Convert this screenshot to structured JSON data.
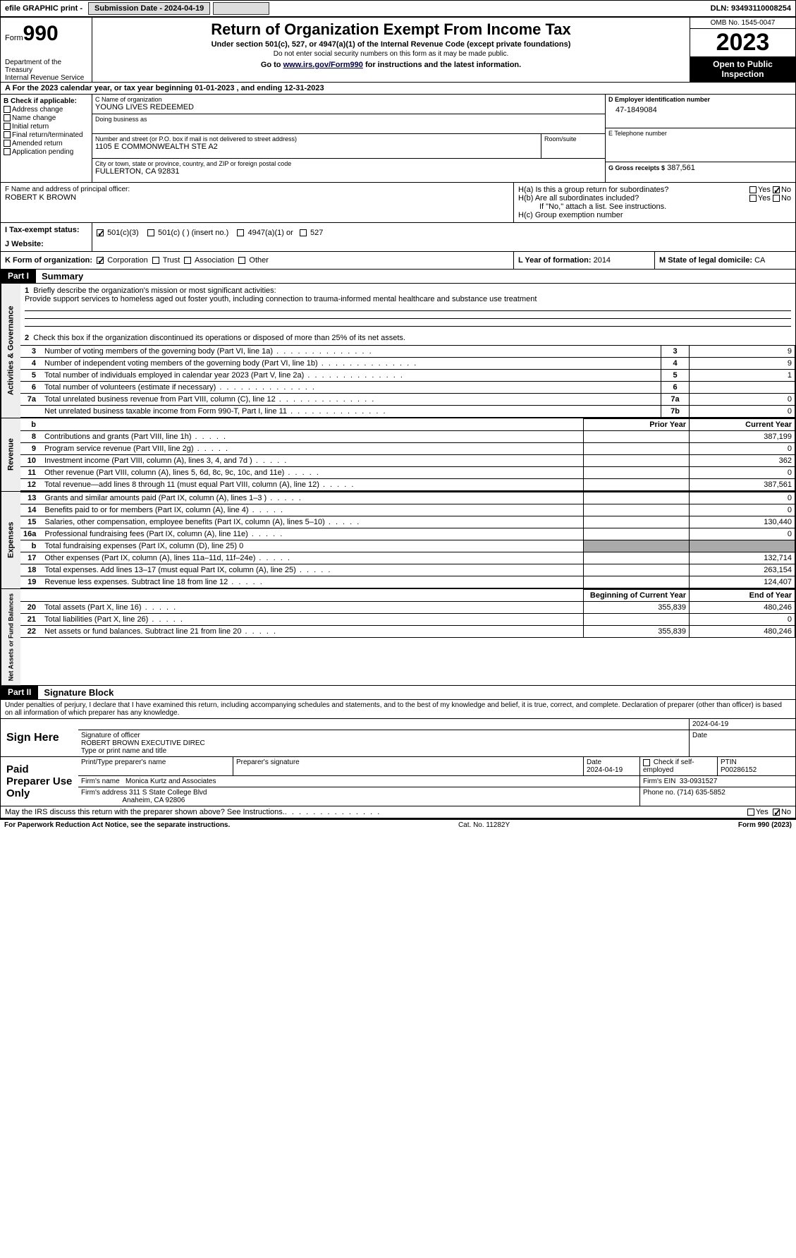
{
  "topbar": {
    "efile": "efile GRAPHIC print -",
    "submission_label": "Submission Date - 2024-04-19",
    "dln_label": "DLN: 93493110008254"
  },
  "header": {
    "form_prefix": "Form",
    "form_number": "990",
    "title": "Return of Organization Exempt From Income Tax",
    "subtitle": "Under section 501(c), 527, or 4947(a)(1) of the Internal Revenue Code (except private foundations)",
    "subtitle2": "Do not enter social security numbers on this form as it may be made public.",
    "subtitle3_pre": "Go to ",
    "subtitle3_link": "www.irs.gov/Form990",
    "subtitle3_post": " for instructions and the latest information.",
    "dept": "Department of the Treasury",
    "irs": "Internal Revenue Service",
    "omb": "OMB No. 1545-0047",
    "year": "2023",
    "public1": "Open to Public",
    "public2": "Inspection"
  },
  "sectionA": "A  For the 2023 calendar year, or tax year beginning 01-01-2023   , and ending 12-31-2023",
  "sectionB": {
    "header": "B Check if applicable:",
    "items": [
      "Address change",
      "Name change",
      "Initial return",
      "Final return/terminated",
      "Amended return",
      "Application pending"
    ]
  },
  "sectionC": {
    "name_label": "C Name of organization",
    "name": "YOUNG LIVES REDEEMED",
    "dba_label": "Doing business as",
    "dba": "",
    "street_label": "Number and street (or P.O. box if mail is not delivered to street address)",
    "street": "1105 E COMMONWEALTH STE A2",
    "room_label": "Room/suite",
    "room": "",
    "city_label": "City or town, state or province, country, and ZIP or foreign postal code",
    "city": "FULLERTON, CA  92831"
  },
  "sectionD": {
    "label": "D Employer identification number",
    "value": "47-1849084"
  },
  "sectionE": {
    "label": "E Telephone number",
    "value": ""
  },
  "sectionG": {
    "label": "G Gross receipts $",
    "value": "387,561"
  },
  "sectionF": {
    "label": "F  Name and address of principal officer:",
    "value": "ROBERT K BROWN"
  },
  "sectionH": {
    "ha_label": "H(a)  Is this a group return for subordinates?",
    "ha_yes": "Yes",
    "ha_no": "No",
    "hb_label": "H(b)  Are all subordinates included?",
    "hb_note": "If \"No,\" attach a list. See instructions.",
    "hc_label": "H(c)  Group exemption number"
  },
  "sectionI": {
    "label": "I    Tax-exempt status:",
    "opt1": "501(c)(3)",
    "opt2": "501(c) (  ) (insert no.)",
    "opt3": "4947(a)(1) or",
    "opt4": "527"
  },
  "sectionJ": {
    "label": "J    Website:",
    "value": ""
  },
  "sectionK": {
    "label": "K Form of organization:",
    "opts": [
      "Corporation",
      "Trust",
      "Association",
      "Other"
    ]
  },
  "sectionL": {
    "label": "L Year of formation:",
    "value": "2014"
  },
  "sectionM": {
    "label": "M State of legal domicile:",
    "value": "CA"
  },
  "partI": {
    "label": "Part I",
    "title": "Summary"
  },
  "mission": {
    "q": "Briefly describe the organization's mission or most significant activities:",
    "a": "Provide support services to homeless aged out foster youth, including connection to trauma-informed mental healthcare and substance use treatment"
  },
  "line2": "Check this box      if the organization discontinued its operations or disposed of more than 25% of its net assets.",
  "gov_rows": [
    {
      "n": "3",
      "t": "Number of voting members of the governing body (Part VI, line 1a)",
      "k": "3",
      "v": "9"
    },
    {
      "n": "4",
      "t": "Number of independent voting members of the governing body (Part VI, line 1b)",
      "k": "4",
      "v": "9"
    },
    {
      "n": "5",
      "t": "Total number of individuals employed in calendar year 2023 (Part V, line 2a)",
      "k": "5",
      "v": "1"
    },
    {
      "n": "6",
      "t": "Total number of volunteers (estimate if necessary)",
      "k": "6",
      "v": ""
    },
    {
      "n": "7a",
      "t": "Total unrelated business revenue from Part VIII, column (C), line 12",
      "k": "7a",
      "v": "0"
    },
    {
      "n": "",
      "t": "Net unrelated business taxable income from Form 990-T, Part I, line 11",
      "k": "7b",
      "v": "0"
    }
  ],
  "revenue": {
    "side": "Revenue",
    "col_prior": "Prior Year",
    "col_current": "Current Year",
    "rows": [
      {
        "n": "8",
        "t": "Contributions and grants (Part VIII, line 1h)",
        "p": "",
        "c": "387,199"
      },
      {
        "n": "9",
        "t": "Program service revenue (Part VIII, line 2g)",
        "p": "",
        "c": "0"
      },
      {
        "n": "10",
        "t": "Investment income (Part VIII, column (A), lines 3, 4, and 7d )",
        "p": "",
        "c": "362"
      },
      {
        "n": "11",
        "t": "Other revenue (Part VIII, column (A), lines 5, 6d, 8c, 9c, 10c, and 11e)",
        "p": "",
        "c": "0"
      },
      {
        "n": "12",
        "t": "Total revenue—add lines 8 through 11 (must equal Part VIII, column (A), line 12)",
        "p": "",
        "c": "387,561"
      }
    ]
  },
  "expenses": {
    "side": "Expenses",
    "rows": [
      {
        "n": "13",
        "t": "Grants and similar amounts paid (Part IX, column (A), lines 1–3 )",
        "p": "",
        "c": "0"
      },
      {
        "n": "14",
        "t": "Benefits paid to or for members (Part IX, column (A), line 4)",
        "p": "",
        "c": "0"
      },
      {
        "n": "15",
        "t": "Salaries, other compensation, employee benefits (Part IX, column (A), lines 5–10)",
        "p": "",
        "c": "130,440"
      },
      {
        "n": "16a",
        "t": "Professional fundraising fees (Part IX, column (A), line 11e)",
        "p": "",
        "c": "0"
      },
      {
        "n": "b",
        "t": "Total fundraising expenses (Part IX, column (D), line 25) 0",
        "shaded": true
      },
      {
        "n": "17",
        "t": "Other expenses (Part IX, column (A), lines 11a–11d, 11f–24e)",
        "p": "",
        "c": "132,714"
      },
      {
        "n": "18",
        "t": "Total expenses. Add lines 13–17 (must equal Part IX, column (A), line 25)",
        "p": "",
        "c": "263,154"
      },
      {
        "n": "19",
        "t": "Revenue less expenses. Subtract line 18 from line 12",
        "p": "",
        "c": "124,407"
      }
    ]
  },
  "netassets": {
    "side": "Net Assets or Fund Balances",
    "col_begin": "Beginning of Current Year",
    "col_end": "End of Year",
    "rows": [
      {
        "n": "20",
        "t": "Total assets (Part X, line 16)",
        "p": "355,839",
        "c": "480,246"
      },
      {
        "n": "21",
        "t": "Total liabilities (Part X, line 26)",
        "p": "",
        "c": "0"
      },
      {
        "n": "22",
        "t": "Net assets or fund balances. Subtract line 21 from line 20",
        "p": "355,839",
        "c": "480,246"
      }
    ]
  },
  "partII": {
    "label": "Part II",
    "title": "Signature Block"
  },
  "perjury": "Under penalties of perjury, I declare that I have examined this return, including accompanying schedules and statements, and to the best of my knowledge and belief, it is true, correct, and complete. Declaration of preparer (other than officer) is based on all information of which preparer has any knowledge.",
  "sign": {
    "label": "Sign Here",
    "sig_label": "Signature of officer",
    "date_label": "Date",
    "date_value": "2024-04-19",
    "name_value": "ROBERT BROWN  EXECUTIVE DIREC",
    "name_label": "Type or print name and title"
  },
  "preparer": {
    "label": "Paid Preparer Use Only",
    "print_label": "Print/Type preparer's name",
    "sig_label": "Preparer's signature",
    "date_label": "Date",
    "date_value": "2024-04-19",
    "check_label": "Check        if self-employed",
    "ptin_label": "PTIN",
    "ptin_value": "P00286152",
    "firm_label": "Firm's name",
    "firm_value": "Monica Kurtz and Associates",
    "ein_label": "Firm's EIN",
    "ein_value": "33-0931527",
    "addr_label": "Firm's address",
    "addr_value1": "311 S State College Blvd",
    "addr_value2": "Anaheim, CA   92806",
    "phone_label": "Phone no.",
    "phone_value": "(714) 635-5852"
  },
  "discuss": {
    "q": "May the IRS discuss this return with the preparer shown above? See Instructions.",
    "yes": "Yes",
    "no": "No"
  },
  "footer": {
    "left": "For Paperwork Reduction Act Notice, see the separate instructions.",
    "mid": "Cat. No. 11282Y",
    "right": "Form 990 (2023)"
  },
  "side_labels": {
    "gov": "Activities & Governance"
  }
}
